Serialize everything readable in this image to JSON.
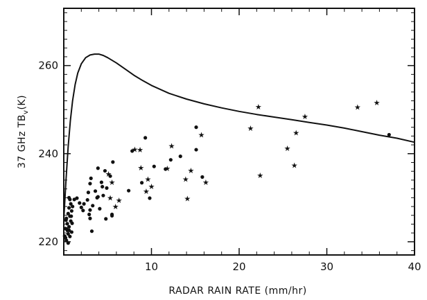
{
  "chart_data": {
    "type": "scatter",
    "xlabel": "RADAR RAIN RATE (mm/hr)",
    "ylabel_main": "37 GHz TB",
    "ylabel_sub": "v",
    "ylabel_unit": "(K)",
    "xlim": [
      0,
      40
    ],
    "ylim": [
      217,
      273
    ],
    "xticks": [
      0,
      10,
      20,
      30,
      40
    ],
    "xtick_labels": [
      "10",
      "20",
      "30",
      "40"
    ],
    "yticks": [
      220,
      240,
      260
    ],
    "ytick_labels": [
      "220",
      "240",
      "260"
    ],
    "grid": false,
    "legend": "none",
    "series": [
      {
        "marker": "dot",
        "points": [
          [
            0.1,
            221.3
          ],
          [
            0.3,
            220.3
          ],
          [
            0.5,
            221.8
          ],
          [
            0.2,
            223.0
          ],
          [
            0.6,
            223.4
          ],
          [
            0.4,
            224.1
          ],
          [
            0.8,
            224.7
          ],
          [
            0.3,
            225.3
          ],
          [
            0.7,
            225.8
          ],
          [
            0.5,
            226.4
          ],
          [
            0.9,
            227.0
          ],
          [
            0.6,
            227.7
          ],
          [
            0.8,
            228.6
          ],
          [
            0.7,
            229.6
          ],
          [
            0.6,
            230.0
          ],
          [
            0.4,
            222.6
          ],
          [
            0.9,
            222.2
          ],
          [
            0.2,
            220.9
          ],
          [
            0.7,
            221.2
          ],
          [
            0.5,
            219.7
          ],
          [
            0.3,
            222.9
          ],
          [
            0.6,
            222.6
          ],
          [
            0.95,
            224.2
          ],
          [
            0.25,
            224.9
          ],
          [
            0.85,
            225.8
          ],
          [
            1.0,
            228.0
          ],
          [
            1.2,
            229.6
          ],
          [
            1.5,
            229.9
          ],
          [
            1.8,
            228.8
          ],
          [
            2.0,
            227.8
          ],
          [
            2.2,
            227.1
          ],
          [
            2.3,
            228.6
          ],
          [
            2.7,
            229.5
          ],
          [
            2.9,
            226.2
          ],
          [
            3.0,
            227.2
          ],
          [
            3.2,
            222.4
          ],
          [
            3.0,
            225.3
          ],
          [
            2.8,
            231.2
          ],
          [
            3.6,
            231.5
          ],
          [
            3.0,
            233.2
          ],
          [
            3.1,
            234.4
          ],
          [
            3.9,
            236.7
          ],
          [
            4.7,
            236.1
          ],
          [
            4.3,
            233.5
          ],
          [
            4.4,
            232.5
          ],
          [
            4.9,
            232.2
          ],
          [
            5.3,
            234.9
          ],
          [
            5.6,
            238.1
          ],
          [
            4.5,
            230.5
          ],
          [
            3.9,
            230.2
          ],
          [
            3.8,
            230.0
          ],
          [
            4.1,
            227.5
          ],
          [
            3.3,
            228.2
          ],
          [
            4.8,
            225.2
          ],
          [
            5.5,
            226.2
          ],
          [
            5.5,
            225.9
          ],
          [
            7.4,
            231.6
          ],
          [
            7.8,
            240.6
          ],
          [
            8.9,
            233.4
          ],
          [
            9.3,
            243.6
          ],
          [
            9.8,
            229.9
          ],
          [
            10.3,
            237.1
          ],
          [
            11.6,
            236.5
          ],
          [
            12.2,
            238.6
          ],
          [
            13.3,
            239.4
          ],
          [
            15.1,
            246.0
          ],
          [
            15.1,
            240.9
          ],
          [
            15.8,
            234.7
          ],
          [
            37.1,
            244.3
          ]
        ]
      },
      {
        "marker": "star",
        "points": [
          [
            5.1,
            235.4
          ],
          [
            5.3,
            230.0
          ],
          [
            5.5,
            233.5
          ],
          [
            5.9,
            228.0
          ],
          [
            6.3,
            229.4
          ],
          [
            8.1,
            241.0
          ],
          [
            8.7,
            240.9
          ],
          [
            8.8,
            236.8
          ],
          [
            9.4,
            231.5
          ],
          [
            9.6,
            234.2
          ],
          [
            10.0,
            232.6
          ],
          [
            11.8,
            236.7
          ],
          [
            12.3,
            241.8
          ],
          [
            13.9,
            234.2
          ],
          [
            14.1,
            229.8
          ],
          [
            14.5,
            236.2
          ],
          [
            15.7,
            244.3
          ],
          [
            16.2,
            233.5
          ],
          [
            21.3,
            245.8
          ],
          [
            22.2,
            250.7
          ],
          [
            22.4,
            235.1
          ],
          [
            25.5,
            241.2
          ],
          [
            26.3,
            237.4
          ],
          [
            26.5,
            244.8
          ],
          [
            27.5,
            248.5
          ],
          [
            33.5,
            250.6
          ],
          [
            35.7,
            251.6
          ]
        ]
      },
      {
        "marker": "line",
        "points": [
          [
            0.0,
            225.0
          ],
          [
            0.25,
            234.0
          ],
          [
            0.5,
            241.5
          ],
          [
            0.75,
            247.5
          ],
          [
            1.0,
            252.0
          ],
          [
            1.3,
            255.7
          ],
          [
            1.6,
            258.3
          ],
          [
            2.0,
            260.4
          ],
          [
            2.5,
            261.8
          ],
          [
            3.0,
            262.4
          ],
          [
            3.5,
            262.6
          ],
          [
            4.0,
            262.6
          ],
          [
            4.5,
            262.3
          ],
          [
            5.0,
            261.8
          ],
          [
            6.0,
            260.6
          ],
          [
            7.0,
            259.2
          ],
          [
            8.0,
            257.8
          ],
          [
            9.0,
            256.6
          ],
          [
            10.0,
            255.5
          ],
          [
            12.0,
            253.7
          ],
          [
            14.0,
            252.4
          ],
          [
            16.0,
            251.3
          ],
          [
            18.0,
            250.4
          ],
          [
            20.0,
            249.6
          ],
          [
            22.0,
            248.9
          ],
          [
            24.0,
            248.3
          ],
          [
            26.0,
            247.7
          ],
          [
            28.0,
            247.1
          ],
          [
            30.0,
            246.5
          ],
          [
            32.0,
            245.8
          ],
          [
            34.0,
            245.0
          ],
          [
            36.0,
            244.2
          ],
          [
            38.0,
            243.5
          ],
          [
            40.0,
            242.6
          ]
        ]
      }
    ]
  }
}
